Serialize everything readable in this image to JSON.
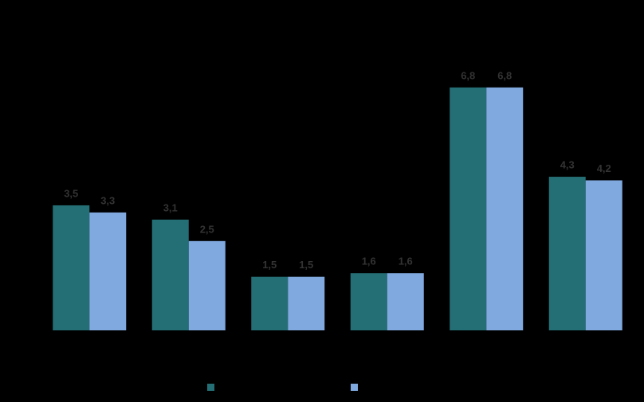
{
  "chart_data": {
    "type": "bar",
    "categories": [
      null,
      null,
      null,
      null,
      null,
      null
    ],
    "series": [
      {
        "color": "#246f75",
        "values": [
          3.5,
          3.1,
          1.5,
          1.6,
          6.8,
          4.3
        ],
        "value_labels": [
          "3,5",
          "3,1",
          "1,5",
          "1,6",
          "6,8",
          "4,3"
        ]
      },
      {
        "color": "#80a9df",
        "values": [
          3.3,
          2.5,
          1.5,
          1.6,
          6.8,
          4.2
        ],
        "value_labels": [
          "3,3",
          "2,5",
          "1,5",
          "1,6",
          "6,8",
          "4,2"
        ]
      }
    ],
    "ylim": [
      0,
      8
    ]
  }
}
